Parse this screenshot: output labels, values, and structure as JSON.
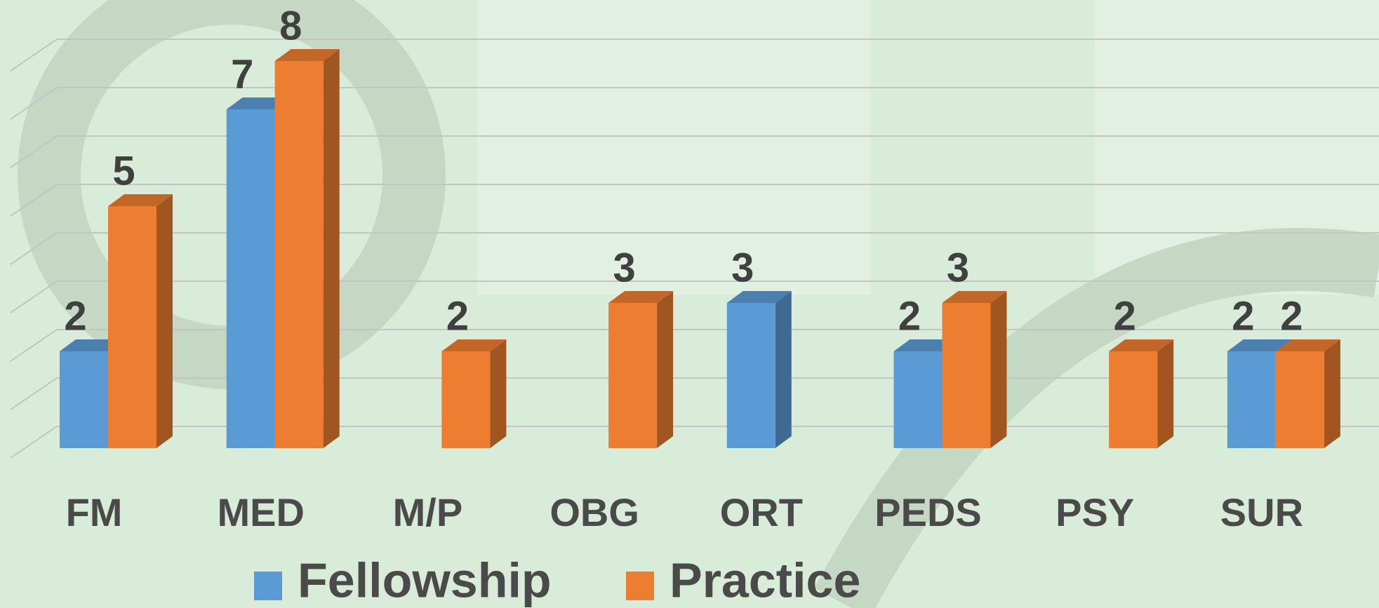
{
  "chart_data": {
    "type": "bar3d",
    "categories": [
      "FM",
      "MED",
      "M/P",
      "OBG",
      "ORT",
      "PEDS",
      "PSY",
      "SUR"
    ],
    "series": [
      {
        "name": "Fellowship",
        "color": "#5b9bd5",
        "values": [
          2,
          7,
          null,
          null,
          3,
          2,
          null,
          2
        ]
      },
      {
        "name": "Practice",
        "color": "#ed7d31",
        "values": [
          5,
          8,
          2,
          3,
          null,
          3,
          2,
          2
        ]
      }
    ],
    "ylim": [
      0,
      8
    ],
    "yticks": [
      0,
      1,
      2,
      3,
      4,
      5,
      6,
      7,
      8
    ],
    "grid": true,
    "legend": "bottom"
  }
}
